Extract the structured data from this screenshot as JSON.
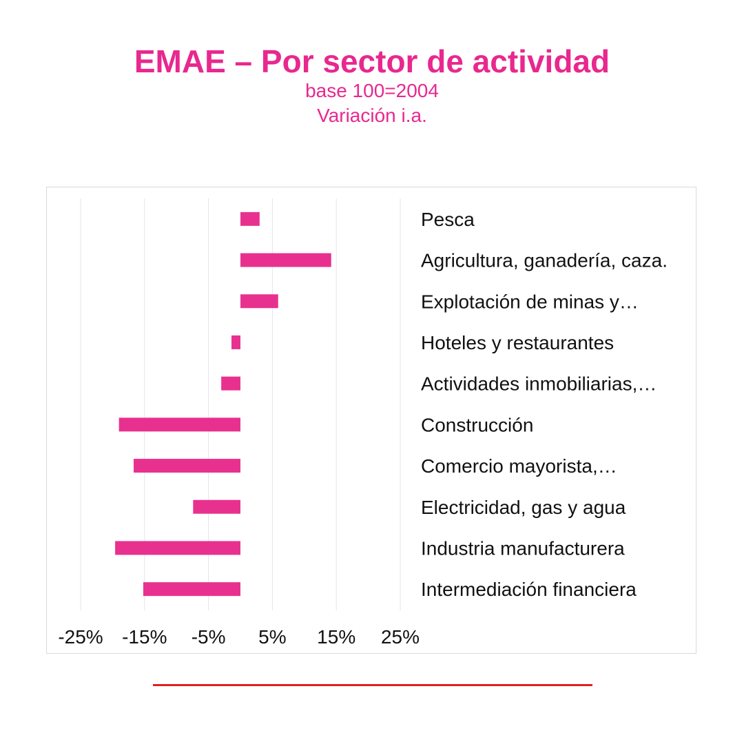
{
  "chart_data": {
    "type": "bar",
    "orientation": "horizontal",
    "title": "EMAE – Por sector de actividad",
    "subtitle": [
      "base 100=2004",
      "Variación i.a."
    ],
    "categories": [
      "Pesca",
      "Agricultura, ganadería, caza.",
      "Explotación de minas y…",
      "Hoteles y restaurantes",
      "Actividades inmobiliarias,…",
      "Construcción",
      "Comercio mayorista,…",
      "Electricidad, gas y agua",
      "Industria manufacturera",
      "Intermediación financiera"
    ],
    "values": [
      3.0,
      14.2,
      5.9,
      -1.4,
      -3.0,
      -19.0,
      -16.7,
      -7.4,
      -19.6,
      -15.2
    ],
    "xlim": [
      -25,
      25
    ],
    "xticks": [
      -25,
      -15,
      -5,
      5,
      15,
      25
    ],
    "xtick_labels": [
      "-25%",
      "-15%",
      "-5%",
      "5%",
      "15%",
      "25%"
    ],
    "grid": true,
    "bar_color": "#e8318f",
    "gridline_color": "#e6e2ee"
  },
  "colors": {
    "title": "#e8288f",
    "rule": "#e02020"
  }
}
